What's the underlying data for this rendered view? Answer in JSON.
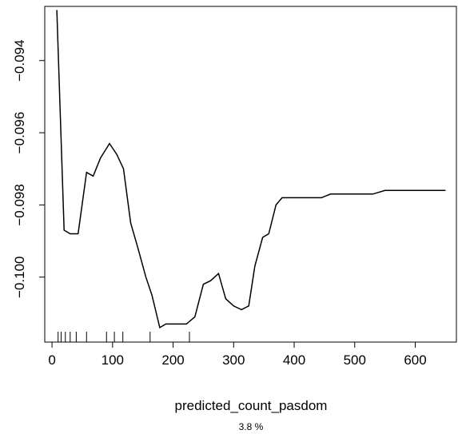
{
  "chart_data": {
    "type": "line",
    "title": "",
    "xlabel": "predicted_count_pasdom",
    "subtitle": "3.8 %",
    "ylabel": "",
    "xlim": [
      -12,
      668
    ],
    "ylim": [
      -0.1018,
      -0.0925
    ],
    "x_ticks": [
      0,
      100,
      200,
      300,
      400,
      500,
      600
    ],
    "y_ticks": [
      -0.094,
      -0.096,
      -0.098,
      -0.1
    ],
    "x_tick_labels": [
      "0",
      "100",
      "200",
      "300",
      "400",
      "500",
      "600"
    ],
    "y_tick_labels": [
      "−0.094",
      "−0.096",
      "−0.098",
      "−0.100"
    ],
    "grid": false,
    "series": [
      {
        "x": [
          8,
          20,
          30,
          43,
          57,
          68,
          80,
          95,
          107,
          118,
          130,
          142,
          155,
          165,
          178,
          188,
          200,
          210,
          222,
          236,
          250,
          262,
          275,
          287,
          300,
          313,
          325,
          335,
          348,
          358,
          370,
          380,
          395,
          410,
          425,
          445,
          460,
          470,
          490,
          510,
          530,
          550,
          565,
          575,
          590,
          610,
          630,
          650
        ],
        "y": [
          -0.0926,
          -0.0987,
          -0.0988,
          -0.0988,
          -0.0971,
          -0.0972,
          -0.0967,
          -0.0963,
          -0.0966,
          -0.097,
          -0.0985,
          -0.0992,
          -0.1,
          -0.1005,
          -0.1014,
          -0.1013,
          -0.1013,
          -0.1013,
          -0.1013,
          -0.1011,
          -0.1002,
          -0.1001,
          -0.0999,
          -0.1006,
          -0.1008,
          -0.1009,
          -0.1008,
          -0.0997,
          -0.0989,
          -0.0988,
          -0.098,
          -0.0978,
          -0.0978,
          -0.0978,
          -0.0978,
          -0.0978,
          -0.0977,
          -0.0977,
          -0.0977,
          -0.0977,
          -0.0977,
          -0.0976,
          -0.0976,
          -0.0976,
          -0.0976,
          -0.0976,
          -0.0976,
          -0.0976
        ]
      }
    ],
    "rug": [
      10,
      15,
      22,
      30,
      40,
      57,
      90,
      103,
      117,
      162,
      227
    ]
  }
}
